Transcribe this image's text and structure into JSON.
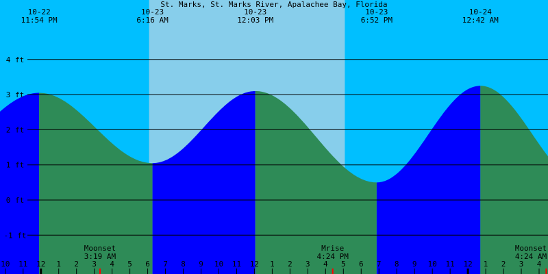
{
  "chart_data": {
    "type": "area",
    "title": "St. Marks, St. Marks River, Apalachee Bay, Florida",
    "y_unit": "ft",
    "ylim": [
      -2,
      5
    ],
    "y_ticks": [
      {
        "value": 4,
        "label": "4 ft"
      },
      {
        "value": 3,
        "label": "3 ft"
      },
      {
        "value": 2,
        "label": "2 ft"
      },
      {
        "value": 1,
        "label": "1 ft"
      },
      {
        "value": 0,
        "label": "0 ft"
      },
      {
        "value": -1,
        "label": "-1 ft"
      }
    ],
    "x_unit": "hour of day",
    "x_start_hour": 21.7,
    "x_end_hour": 52.5,
    "daylight": [
      {
        "start_hour": 30.08,
        "end_hour": 41.08
      }
    ],
    "tide_extremes": [
      {
        "date": "10-22",
        "time": "11:54 PM",
        "type": "high",
        "hour": 23.9,
        "height": 3.05
      },
      {
        "date": "10-23",
        "time": "6:16 AM",
        "type": "low",
        "hour": 30.27,
        "height": 1.05
      },
      {
        "date": "10-23",
        "time": "12:03 PM",
        "type": "high",
        "hour": 36.05,
        "height": 3.1
      },
      {
        "date": "10-23",
        "time": "6:52 PM",
        "type": "low",
        "hour": 42.87,
        "height": 0.5
      },
      {
        "date": "10-24",
        "time": "12:42 AM",
        "type": "high",
        "hour": 48.7,
        "height": 3.25
      }
    ],
    "hour_ticks": [
      {
        "hour": 22,
        "label": "10"
      },
      {
        "hour": 23,
        "label": "11"
      },
      {
        "hour": 24,
        "label": "12"
      },
      {
        "hour": 25,
        "label": "1"
      },
      {
        "hour": 26,
        "label": "2"
      },
      {
        "hour": 27,
        "label": "3"
      },
      {
        "hour": 28,
        "label": "4"
      },
      {
        "hour": 29,
        "label": "5"
      },
      {
        "hour": 30,
        "label": "6"
      },
      {
        "hour": 31,
        "label": "7"
      },
      {
        "hour": 32,
        "label": "8"
      },
      {
        "hour": 33,
        "label": "9"
      },
      {
        "hour": 34,
        "label": "10"
      },
      {
        "hour": 35,
        "label": "11"
      },
      {
        "hour": 36,
        "label": "12"
      },
      {
        "hour": 37,
        "label": "1"
      },
      {
        "hour": 38,
        "label": "2"
      },
      {
        "hour": 39,
        "label": "3"
      },
      {
        "hour": 40,
        "label": "4"
      },
      {
        "hour": 41,
        "label": "5"
      },
      {
        "hour": 42,
        "label": "6"
      },
      {
        "hour": 43,
        "label": "7"
      },
      {
        "hour": 44,
        "label": "8"
      },
      {
        "hour": 45,
        "label": "9"
      },
      {
        "hour": 46,
        "label": "10"
      },
      {
        "hour": 47,
        "label": "11"
      },
      {
        "hour": 48,
        "label": "12"
      },
      {
        "hour": 49,
        "label": "1"
      },
      {
        "hour": 50,
        "label": "2"
      },
      {
        "hour": 51,
        "label": "3"
      },
      {
        "hour": 52,
        "label": "4"
      },
      {
        "hour": 53,
        "label": "5"
      }
    ],
    "midnight_hours": [
      24,
      48
    ],
    "moon_events": [
      {
        "label": "Moonset",
        "time": "3:19 AM",
        "hour": 27.32
      },
      {
        "label": "Mrise",
        "time": "4:24 PM",
        "hour": 40.4
      },
      {
        "label": "Moonset",
        "time": "4:24 AM",
        "hour": 52.4
      }
    ],
    "grid": true
  },
  "colors": {
    "night": "#00bfff",
    "daylight": "#87ceeb",
    "rising_tide": "#0000ff",
    "falling_tide": "#2e8b57",
    "grid_line": "#000000",
    "moon_tick": "#ff0000",
    "midnight_tick": "#000000"
  }
}
